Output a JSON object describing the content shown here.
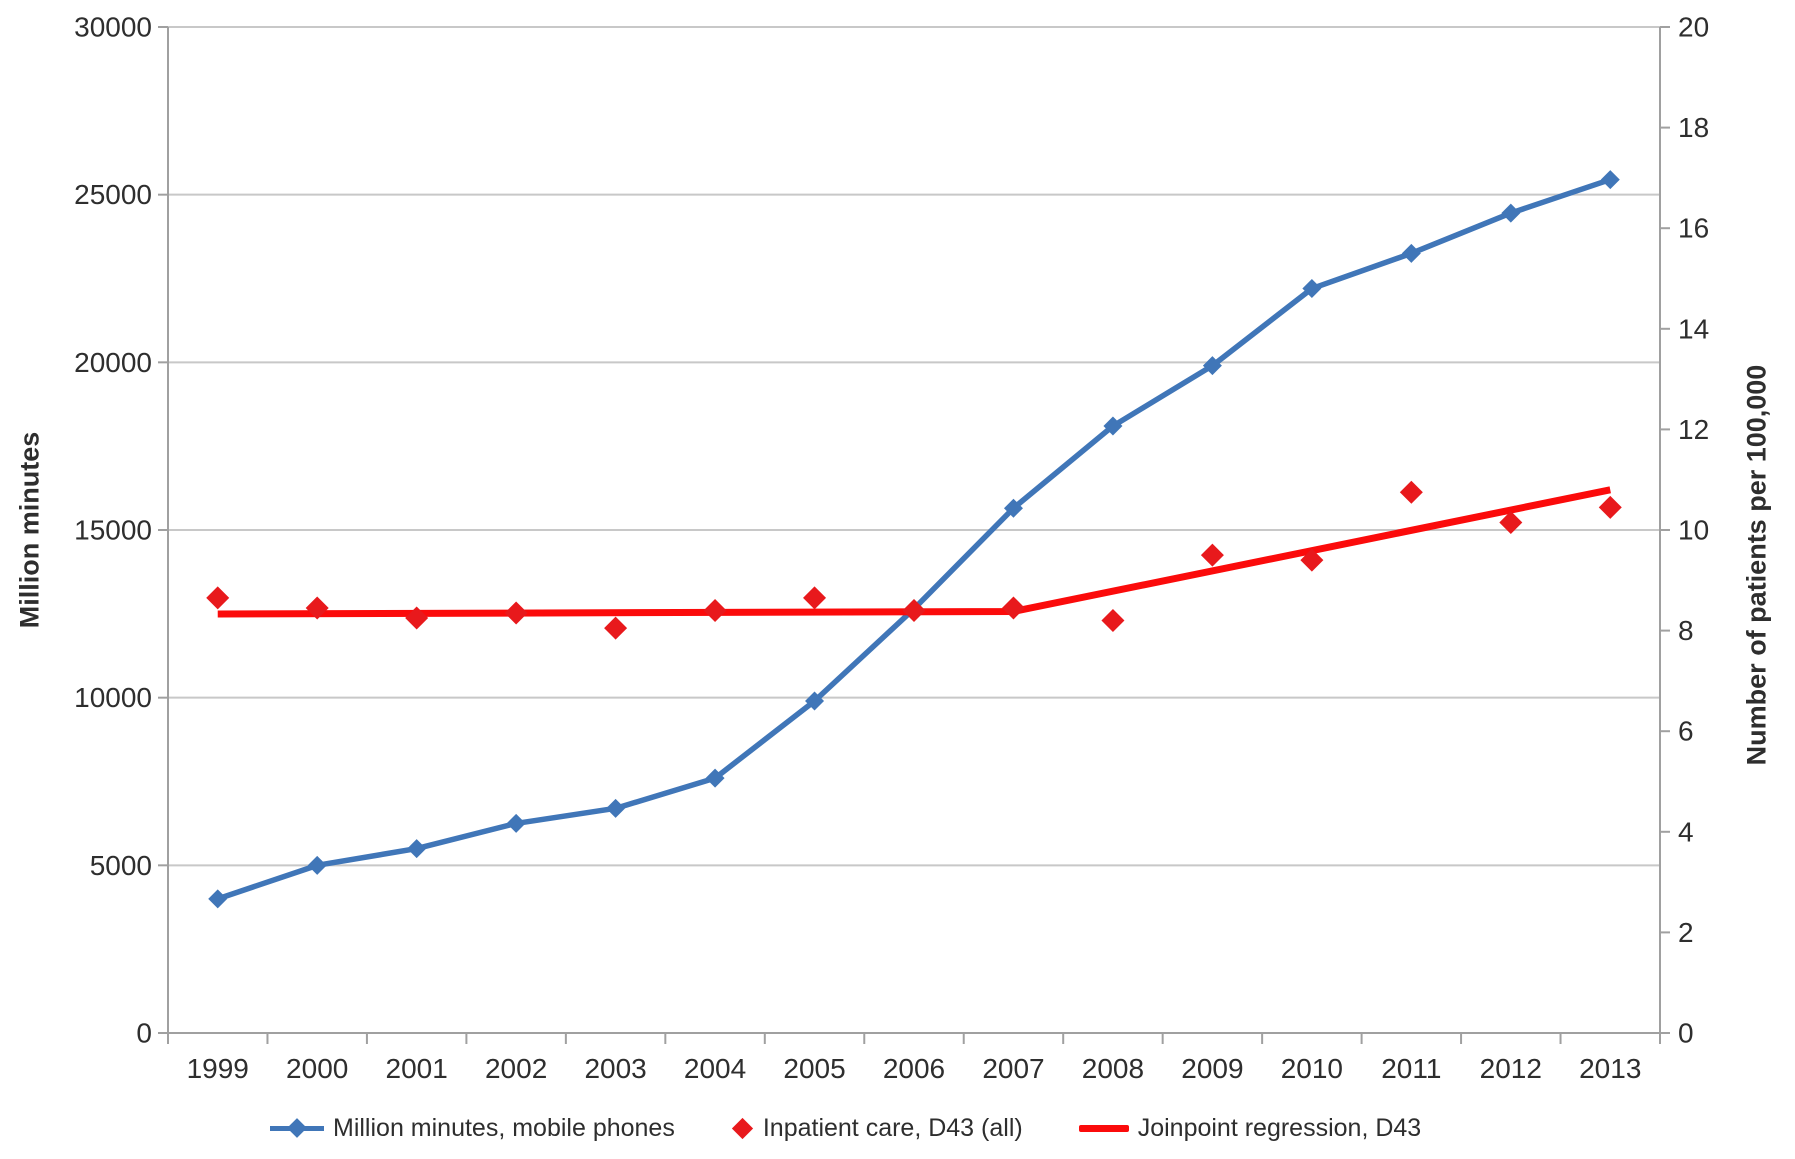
{
  "chart_data": {
    "type": "line",
    "title": "",
    "x_categories": [
      "1999",
      "2000",
      "2001",
      "2002",
      "2003",
      "2004",
      "2005",
      "2006",
      "2007",
      "2008",
      "2009",
      "2010",
      "2011",
      "2012",
      "2013"
    ],
    "left_axis": {
      "title": "Million minutes",
      "min": 0,
      "max": 30000,
      "step": 5000,
      "tick_labels": [
        "0",
        "5000",
        "10000",
        "15000",
        "20000",
        "25000",
        "30000"
      ]
    },
    "right_axis": {
      "title": "Number of patients per 100,000",
      "min": 0,
      "max": 20,
      "step": 2,
      "tick_labels": [
        "0",
        "2",
        "4",
        "6",
        "8",
        "10",
        "12",
        "14",
        "16",
        "18",
        "20"
      ]
    },
    "grid": "horizontal",
    "legend_position": "bottom",
    "series": [
      {
        "name": "Million minutes, mobile phones",
        "axis": "left",
        "color": "#4076b8",
        "marker": "diamond",
        "line": true,
        "values": [
          4000,
          5000,
          5500,
          6250,
          6700,
          7600,
          9900,
          12650,
          15650,
          18100,
          19900,
          22200,
          23250,
          24450,
          25450
        ]
      },
      {
        "name": "Inpatient care, D43 (all)",
        "axis": "right",
        "color": "#e8191c",
        "marker": "diamond",
        "line": false,
        "values": [
          8.65,
          8.45,
          8.25,
          8.35,
          8.05,
          8.4,
          8.65,
          8.4,
          8.45,
          8.2,
          9.5,
          9.4,
          10.75,
          10.15,
          10.45
        ]
      },
      {
        "name": "Joinpoint regression, D43",
        "axis": "right",
        "color": "#fb0b0b",
        "marker": null,
        "line": true,
        "points": [
          {
            "x": "1999",
            "y": 8.33
          },
          {
            "x": "2007",
            "y": 8.38
          },
          {
            "x": "2013",
            "y": 10.8
          }
        ]
      }
    ],
    "style_colors": {
      "gridline": "#c8c8c8",
      "axis_line": "#a0a0a0",
      "tick_text": "#2e2e2e"
    }
  }
}
